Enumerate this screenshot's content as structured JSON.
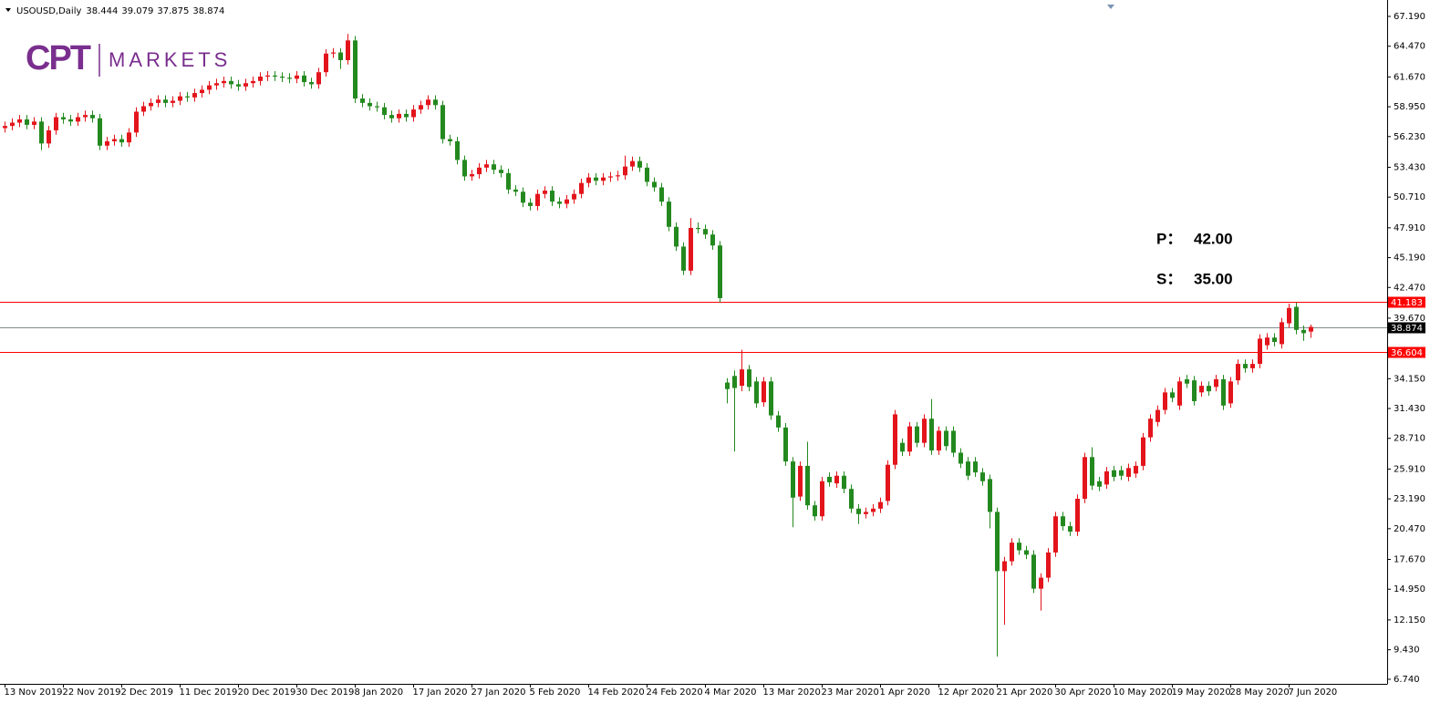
{
  "chart_data": {
    "type": "candlestick",
    "title": "USOUSD,Daily",
    "logo": {
      "mark": "CPT",
      "text": "MARKETS"
    },
    "up_color": "#e3141b",
    "down_color": "#23891f",
    "grid": false,
    "ylim": [
      6.32,
      68.27
    ],
    "yticks": [
      {
        "value": 67.19,
        "label": "67.190"
      },
      {
        "value": 64.47,
        "label": "64.470"
      },
      {
        "value": 61.67,
        "label": "61.670"
      },
      {
        "value": 58.95,
        "label": "58.950"
      },
      {
        "value": 56.23,
        "label": "56.230"
      },
      {
        "value": 53.43,
        "label": "53.430"
      },
      {
        "value": 50.71,
        "label": "50.710"
      },
      {
        "value": 47.91,
        "label": "47.910"
      },
      {
        "value": 45.19,
        "label": "45.190"
      },
      {
        "value": 42.47,
        "label": "42.470"
      },
      {
        "value": 39.67,
        "label": "39.670"
      },
      {
        "value": 34.15,
        "label": "34.150"
      },
      {
        "value": 31.43,
        "label": "31.430"
      },
      {
        "value": 28.71,
        "label": "28.710"
      },
      {
        "value": 25.91,
        "label": "25.910"
      },
      {
        "value": 23.19,
        "label": "23.190"
      },
      {
        "value": 20.47,
        "label": "20.470"
      },
      {
        "value": 17.67,
        "label": "17.670"
      },
      {
        "value": 14.95,
        "label": "14.950"
      },
      {
        "value": 12.15,
        "label": "12.150"
      },
      {
        "value": 9.43,
        "label": "9.430"
      },
      {
        "value": 6.74,
        "label": "6.740"
      }
    ],
    "price_lines": [
      {
        "value": 41.183,
        "color": "#ff0000"
      },
      {
        "value": 36.604,
        "color": "#ff0000"
      }
    ],
    "bid_color": "#7f8f8f",
    "annotations": [
      {
        "label": "P：",
        "text": "42.00"
      },
      {
        "label": "S：",
        "text": "35.00"
      }
    ],
    "categories": [
      "13 Nov 2019",
      null,
      null,
      null,
      null,
      null,
      null,
      null,
      "22 Nov 2019",
      null,
      null,
      null,
      null,
      null,
      null,
      null,
      "2 Dec 2019",
      null,
      null,
      null,
      null,
      null,
      null,
      null,
      "11 Dec 2019",
      null,
      null,
      null,
      null,
      null,
      null,
      null,
      "20 Dec 2019",
      null,
      null,
      null,
      null,
      null,
      null,
      null,
      "30 Dec 2019",
      null,
      null,
      null,
      null,
      null,
      null,
      null,
      "8 Jan 2020",
      null,
      null,
      null,
      null,
      null,
      null,
      null,
      "17 Jan 2020",
      null,
      null,
      null,
      null,
      null,
      null,
      null,
      "27 Jan 2020",
      null,
      null,
      null,
      null,
      null,
      null,
      null,
      "5 Feb 2020",
      null,
      null,
      null,
      null,
      null,
      null,
      null,
      "14 Feb 2020",
      null,
      null,
      null,
      null,
      null,
      null,
      null,
      "24 Feb 2020",
      null,
      null,
      null,
      null,
      null,
      null,
      null,
      "4 Mar 2020",
      null,
      null,
      null,
      null,
      null,
      null,
      null,
      "13 Mar 2020",
      null,
      null,
      null,
      null,
      null,
      null,
      null,
      "23 Mar 2020",
      null,
      null,
      null,
      null,
      null,
      null,
      null,
      "1 Apr 2020",
      null,
      null,
      null,
      null,
      null,
      null,
      null,
      "12 Apr 2020",
      null,
      null,
      null,
      null,
      null,
      null,
      null,
      "21 Apr 2020",
      null,
      null,
      null,
      null,
      null,
      null,
      null,
      "30 Apr 2020",
      null,
      null,
      null,
      null,
      null,
      null,
      null,
      "10 May 2020",
      null,
      null,
      null,
      null,
      null,
      null,
      null,
      "19 May 2020",
      null,
      null,
      null,
      null,
      null,
      null,
      null,
      "28 May 2020",
      null,
      null,
      null,
      null,
      null,
      null,
      null,
      "7 Jun 2020",
      null,
      null,
      null
    ],
    "open": [
      57.0,
      57.2,
      57.5,
      57.8,
      57.3,
      57.6,
      55.6,
      56.8,
      58.0,
      57.8,
      57.6,
      58.0,
      58.2,
      57.9,
      55.4,
      55.8,
      56.0,
      55.7,
      56.6,
      58.5,
      59.0,
      59.3,
      59.6,
      59.3,
      59.5,
      59.9,
      59.8,
      60.2,
      60.5,
      60.9,
      61.1,
      61.3,
      61.0,
      60.8,
      61.1,
      61.3,
      61.7,
      61.8,
      61.7,
      61.6,
      61.5,
      61.8,
      61.2,
      61.0,
      62.1,
      63.8,
      63.9,
      63.2,
      65.0,
      59.7,
      59.3,
      59.0,
      58.9,
      58.2,
      57.9,
      58.3,
      58.0,
      58.7,
      59.1,
      59.6,
      59.1,
      56.0,
      55.8,
      54.1,
      52.6,
      52.8,
      53.4,
      53.7,
      53.2,
      52.9,
      51.4,
      51.2,
      50.2,
      49.9,
      51.0,
      51.3,
      50.3,
      50.1,
      50.5,
      51.0,
      52.0,
      52.5,
      52.2,
      52.5,
      52.6,
      52.7,
      53.5,
      54.0,
      53.4,
      52.1,
      51.6,
      50.3,
      48.0,
      46.2,
      44.0,
      47.9,
      47.8,
      47.3,
      46.3,
      33.8,
      34.4,
      33.5,
      35.0,
      33.9,
      32.0,
      33.9,
      30.8,
      29.7,
      26.6,
      23.4,
      26.2,
      22.6,
      21.6,
      25.2,
      24.6,
      25.3,
      24.1,
      22.3,
      21.8,
      22.0,
      22.3,
      23.0,
      26.3,
      28.3,
      27.5,
      29.8,
      28.3,
      30.5,
      27.6,
      29.4,
      29.4,
      27.4,
      26.6,
      26.6,
      25.6,
      25.0,
      22.0,
      16.6,
      17.5,
      19.2,
      18.5,
      18.1,
      15.0,
      16.0,
      18.3,
      21.6,
      20.7,
      20.2,
      23.2,
      27.0,
      24.8,
      24.5,
      25.8,
      25.8,
      25.2,
      25.5,
      26.2,
      28.8,
      30.2,
      31.3,
      32.9,
      31.7,
      34.1,
      34.0,
      32.9,
      33.5,
      33.4,
      34.1,
      31.9,
      34.0,
      35.5,
      35.1,
      35.5,
      37.2,
      37.9,
      37.3,
      39.2,
      40.7,
      38.6,
      38.444
    ],
    "high": [
      57.6,
      57.9,
      58.2,
      58.2,
      58.0,
      58.0,
      57.2,
      58.4,
      58.4,
      58.2,
      58.4,
      58.6,
      58.6,
      58.3,
      56.2,
      56.4,
      56.4,
      57.0,
      58.9,
      59.4,
      59.7,
      60.0,
      60.0,
      59.9,
      60.3,
      60.3,
      60.6,
      60.9,
      61.3,
      61.5,
      61.7,
      61.7,
      61.4,
      61.5,
      61.7,
      62.1,
      62.2,
      62.2,
      62.1,
      62.0,
      62.2,
      62.2,
      61.6,
      62.5,
      64.2,
      64.3,
      64.3,
      65.6,
      65.4,
      60.1,
      59.7,
      59.4,
      59.3,
      58.6,
      58.7,
      58.7,
      59.1,
      59.5,
      60.0,
      60.0,
      59.5,
      56.4,
      56.2,
      54.5,
      53.2,
      53.8,
      54.1,
      54.1,
      53.6,
      53.3,
      51.8,
      51.6,
      50.6,
      51.4,
      51.7,
      51.7,
      50.7,
      50.9,
      51.4,
      52.4,
      52.9,
      52.9,
      52.9,
      53.0,
      53.1,
      54.5,
      54.4,
      54.4,
      53.8,
      52.5,
      52.0,
      50.7,
      48.4,
      46.6,
      48.8,
      48.4,
      48.2,
      47.7,
      46.7,
      34.2,
      34.9,
      36.8,
      35.4,
      34.3,
      34.3,
      34.3,
      31.2,
      30.1,
      27.0,
      26.6,
      28.4,
      23.0,
      25.2,
      25.6,
      25.7,
      25.7,
      24.5,
      22.7,
      22.4,
      22.7,
      23.3,
      26.7,
      31.3,
      28.7,
      30.2,
      30.2,
      30.9,
      32.3,
      29.8,
      29.8,
      29.8,
      27.8,
      27.0,
      27.0,
      26.0,
      25.4,
      22.4,
      17.9,
      19.6,
      19.6,
      18.9,
      18.5,
      16.4,
      18.7,
      22.0,
      22.0,
      21.1,
      23.6,
      27.4,
      27.9,
      25.2,
      26.1,
      26.2,
      26.2,
      26.4,
      26.6,
      29.2,
      30.9,
      31.7,
      33.3,
      33.3,
      34.3,
      34.5,
      34.4,
      33.9,
      33.9,
      34.5,
      34.5,
      34.3,
      35.9,
      35.9,
      35.9,
      38.2,
      38.3,
      38.3,
      39.7,
      41.0,
      41.1,
      39.0,
      39.079
    ],
    "low": [
      56.6,
      56.8,
      57.1,
      56.9,
      56.9,
      55.0,
      55.2,
      56.4,
      57.4,
      57.2,
      57.2,
      57.6,
      57.5,
      55.0,
      55.0,
      55.4,
      55.3,
      55.3,
      56.2,
      58.1,
      58.6,
      58.9,
      58.9,
      58.9,
      59.1,
      59.4,
      59.4,
      59.8,
      60.1,
      60.5,
      60.7,
      60.6,
      60.4,
      60.4,
      60.7,
      60.9,
      61.3,
      61.3,
      61.2,
      61.1,
      61.1,
      60.8,
      60.6,
      60.6,
      61.7,
      63.4,
      62.4,
      62.8,
      59.3,
      58.9,
      58.6,
      58.5,
      57.8,
      57.5,
      57.5,
      57.6,
      57.6,
      58.3,
      58.7,
      58.7,
      55.6,
      55.4,
      53.7,
      52.2,
      52.2,
      52.4,
      53.0,
      52.8,
      52.5,
      51.0,
      50.8,
      49.8,
      49.5,
      49.5,
      50.6,
      49.9,
      49.7,
      49.7,
      50.1,
      50.6,
      51.6,
      51.8,
      51.8,
      52.1,
      52.2,
      52.3,
      53.1,
      53.0,
      51.7,
      51.2,
      49.9,
      47.6,
      45.8,
      43.6,
      43.6,
      47.4,
      46.9,
      45.9,
      41.1,
      31.9,
      27.5,
      33.0,
      33.0,
      31.5,
      31.6,
      30.4,
      29.3,
      26.2,
      20.6,
      23.0,
      22.2,
      21.2,
      21.2,
      24.3,
      24.2,
      23.7,
      21.9,
      20.9,
      21.4,
      21.6,
      21.9,
      22.6,
      25.9,
      27.1,
      27.1,
      27.9,
      27.9,
      27.2,
      27.2,
      27.6,
      27.0,
      26.0,
      24.9,
      25.2,
      24.4,
      20.5,
      8.8,
      11.7,
      17.1,
      18.1,
      17.7,
      14.6,
      13.0,
      15.6,
      17.9,
      20.3,
      19.8,
      19.8,
      22.8,
      24.0,
      23.9,
      24.1,
      24.8,
      24.9,
      24.8,
      25.1,
      25.8,
      28.4,
      29.8,
      30.9,
      32.0,
      31.3,
      33.3,
      31.7,
      32.5,
      32.6,
      33.0,
      31.3,
      31.5,
      33.6,
      34.7,
      34.7,
      35.1,
      36.8,
      37.1,
      36.9,
      38.8,
      38.2,
      37.6,
      37.875
    ],
    "close": [
      57.2,
      57.5,
      57.8,
      57.3,
      57.6,
      55.6,
      56.8,
      58.0,
      57.8,
      57.6,
      58.0,
      58.2,
      57.9,
      55.4,
      55.8,
      56.0,
      55.7,
      56.6,
      58.5,
      59.0,
      59.3,
      59.6,
      59.3,
      59.5,
      59.9,
      59.8,
      60.2,
      60.5,
      60.9,
      61.1,
      61.3,
      61.0,
      60.8,
      61.1,
      61.3,
      61.7,
      61.8,
      61.7,
      61.6,
      61.5,
      61.8,
      61.2,
      61.0,
      62.1,
      63.8,
      63.9,
      63.2,
      65.0,
      59.7,
      59.3,
      59.0,
      58.9,
      58.2,
      57.9,
      58.3,
      58.0,
      58.7,
      59.1,
      59.6,
      59.1,
      56.0,
      55.8,
      54.1,
      52.6,
      52.8,
      53.4,
      53.7,
      53.2,
      52.9,
      51.4,
      51.2,
      50.2,
      49.9,
      51.0,
      51.3,
      50.3,
      50.1,
      50.5,
      51.0,
      52.0,
      52.5,
      52.2,
      52.5,
      52.6,
      52.7,
      53.5,
      54.0,
      53.4,
      52.1,
      51.6,
      50.3,
      48.0,
      46.2,
      44.0,
      47.9,
      47.8,
      47.3,
      46.3,
      41.5,
      33.2,
      33.3,
      35.0,
      33.4,
      31.9,
      33.9,
      30.8,
      29.7,
      26.6,
      23.3,
      26.2,
      22.6,
      21.6,
      24.8,
      24.7,
      25.3,
      24.1,
      22.3,
      21.8,
      22.0,
      22.3,
      22.9,
      26.3,
      30.9,
      27.5,
      29.8,
      28.3,
      30.5,
      27.6,
      29.4,
      28.0,
      27.4,
      26.4,
      25.3,
      25.6,
      24.8,
      22.0,
      16.6,
      17.5,
      19.2,
      18.5,
      18.1,
      15.0,
      16.0,
      18.3,
      21.6,
      20.7,
      20.2,
      23.2,
      27.0,
      24.4,
      24.3,
      25.7,
      25.2,
      25.3,
      26.0,
      26.2,
      28.8,
      30.5,
      31.3,
      32.9,
      32.4,
      33.9,
      33.7,
      32.1,
      33.5,
      33.0,
      34.1,
      31.7,
      33.9,
      35.5,
      35.1,
      35.5,
      37.8,
      37.9,
      37.5,
      39.3,
      40.6,
      38.6,
      38.3,
      38.874
    ]
  }
}
